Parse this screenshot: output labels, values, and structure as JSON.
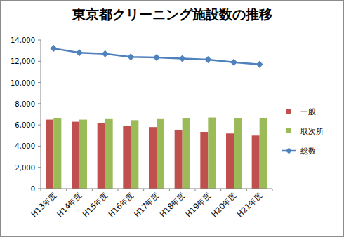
{
  "chart_data": {
    "type": "bar",
    "title": "東京都クリーニング施設数の推移",
    "categories": [
      "H13年度",
      "H14年度",
      "H15年度",
      "H16年度",
      "H17年度",
      "H18年度",
      "H19年度",
      "H20年度",
      "H21年度"
    ],
    "series": [
      {
        "name": "一般",
        "type": "bar",
        "color": "#c0504d",
        "values": [
          6500,
          6300,
          6150,
          5900,
          5800,
          5550,
          5350,
          5200,
          5000
        ]
      },
      {
        "name": "取次所",
        "type": "bar",
        "color": "#9bbb59",
        "values": [
          6650,
          6500,
          6550,
          6450,
          6550,
          6650,
          6700,
          6650,
          6650
        ]
      },
      {
        "name": "総数",
        "type": "line",
        "color": "#4f81bd",
        "marker": "diamond",
        "values": [
          13200,
          12800,
          12700,
          12400,
          12350,
          12250,
          12150,
          11900,
          11700
        ]
      }
    ],
    "ylim": [
      0,
      14000
    ],
    "yticks": [
      0,
      {
        "value": 2000,
        "label": "2,000"
      },
      {
        "value": 4000,
        "label": "4,000"
      },
      {
        "value": 6000,
        "label": "6,000"
      },
      {
        "value": 8000,
        "label": "8,000"
      },
      {
        "value": 10000,
        "label": "10,000"
      },
      {
        "value": 12000,
        "label": "12,000"
      },
      {
        "value": 14000,
        "label": "14,000"
      }
    ],
    "grid": false,
    "legend": "right"
  }
}
